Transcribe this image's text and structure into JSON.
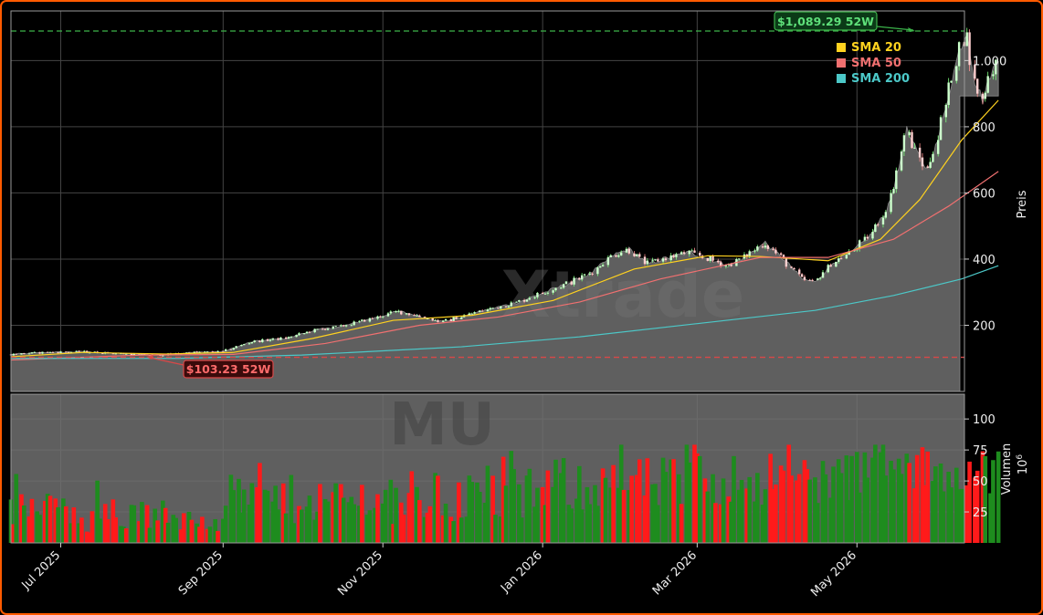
{
  "colors": {
    "background": "#000000",
    "frame": "#ff5a00",
    "area_fill": "#5f5f5f",
    "grid": "#444444",
    "up": "#1e8c1e",
    "down": "#ff1a1a",
    "sma20": "#ffd21f",
    "sma50": "#f07070",
    "sma200": "#4cc8c8",
    "high_line": "#3cb34a",
    "low_line": "#d94848"
  },
  "chart_data": [
    {
      "type": "line",
      "panel": "price",
      "ticker": "MU",
      "watermark": "Xtrade",
      "ylabel": "Preis",
      "ylim": [
        0,
        1150
      ],
      "yticks": [
        200,
        400,
        600,
        800,
        1000
      ],
      "ytick_labels": [
        "200",
        "400",
        "600",
        "800",
        "1.000"
      ],
      "x_tick_labels": [
        "Jul 2025",
        "Sep 2025",
        "Nov 2025",
        "Jan 2026",
        "Mar 2026",
        "May 2026"
      ],
      "x_tick_dates": [
        "2025-07-01",
        "2025-09-01",
        "2025-11-01",
        "2026-01-01",
        "2026-03-01",
        "2026-05-01"
      ],
      "xlim": [
        "2025-06-12",
        "2026-06-10"
      ],
      "grid": true,
      "legend_position": "top-right",
      "annotations": [
        {
          "label": "$1,089.29 52W",
          "value": 1089.29,
          "date": "2026-05-29",
          "kind": "52w-high"
        },
        {
          "label": "$103.23 52W",
          "value": 103.23,
          "date": "2025-08-15",
          "kind": "52w-low"
        }
      ],
      "price_series": {
        "name": "",
        "points": [
          [
            "2025-06-12",
            112
          ],
          [
            "2025-06-25",
            118
          ],
          [
            "2025-07-10",
            120
          ],
          [
            "2025-07-25",
            114
          ],
          [
            "2025-08-08",
            110
          ],
          [
            "2025-08-20",
            118
          ],
          [
            "2025-09-01",
            120
          ],
          [
            "2025-09-12",
            150
          ],
          [
            "2025-09-26",
            162
          ],
          [
            "2025-10-06",
            185
          ],
          [
            "2025-10-16",
            196
          ],
          [
            "2025-10-28",
            220
          ],
          [
            "2025-11-07",
            242
          ],
          [
            "2025-11-14",
            230
          ],
          [
            "2025-11-24",
            210
          ],
          [
            "2025-12-05",
            235
          ],
          [
            "2025-12-15",
            255
          ],
          [
            "2025-12-22",
            268
          ],
          [
            "2026-01-02",
            300
          ],
          [
            "2026-01-12",
            330
          ],
          [
            "2026-01-20",
            360
          ],
          [
            "2026-01-28",
            412
          ],
          [
            "2026-02-03",
            430
          ],
          [
            "2026-02-10",
            385
          ],
          [
            "2026-02-18",
            405
          ],
          [
            "2026-02-26",
            420
          ],
          [
            "2026-03-06",
            400
          ],
          [
            "2026-03-13",
            380
          ],
          [
            "2026-03-20",
            410
          ],
          [
            "2026-03-27",
            450
          ],
          [
            "2026-04-03",
            400
          ],
          [
            "2026-04-10",
            340
          ],
          [
            "2026-04-15",
            330
          ],
          [
            "2026-04-22",
            390
          ],
          [
            "2026-04-29",
            420
          ],
          [
            "2026-05-06",
            470
          ],
          [
            "2026-05-12",
            540
          ],
          [
            "2026-05-16",
            640
          ],
          [
            "2026-05-20",
            790
          ],
          [
            "2026-05-24",
            720
          ],
          [
            "2026-05-28",
            670
          ],
          [
            "2026-06-01",
            760
          ],
          [
            "2026-06-05",
            900
          ],
          [
            "2026-06-09",
            1030
          ],
          [
            "2026-06-12",
            1089
          ],
          [
            "2026-06-15",
            940
          ],
          [
            "2026-06-18",
            880
          ],
          [
            "2026-06-21",
            960
          ],
          [
            "2026-06-24",
            1000
          ]
        ]
      },
      "series": [
        {
          "name": "SMA 20",
          "color": "#ffd21f",
          "points": [
            [
              "2025-06-12",
              105
            ],
            [
              "2025-07-10",
              118
            ],
            [
              "2025-08-10",
              113
            ],
            [
              "2025-09-05",
              118
            ],
            [
              "2025-10-05",
              160
            ],
            [
              "2025-11-05",
              215
            ],
            [
              "2025-12-05",
              230
            ],
            [
              "2026-01-05",
              275
            ],
            [
              "2026-02-05",
              370
            ],
            [
              "2026-03-05",
              410
            ],
            [
              "2026-03-25",
              408
            ],
            [
              "2026-04-20",
              395
            ],
            [
              "2026-05-10",
              460
            ],
            [
              "2026-05-25",
              580
            ],
            [
              "2026-06-10",
              760
            ],
            [
              "2026-06-24",
              880
            ]
          ]
        },
        {
          "name": "SMA 50",
          "color": "#f07070",
          "points": [
            [
              "2025-06-12",
              95
            ],
            [
              "2025-08-01",
              110
            ],
            [
              "2025-09-05",
              112
            ],
            [
              "2025-10-10",
              145
            ],
            [
              "2025-11-15",
              200
            ],
            [
              "2025-12-15",
              225
            ],
            [
              "2026-01-15",
              270
            ],
            [
              "2026-02-15",
              340
            ],
            [
              "2026-03-25",
              405
            ],
            [
              "2026-04-20",
              405
            ],
            [
              "2026-05-15",
              460
            ],
            [
              "2026-06-05",
              560
            ],
            [
              "2026-06-24",
              665
            ]
          ]
        },
        {
          "name": "SMA 200",
          "color": "#4cc8c8",
          "points": [
            [
              "2025-06-12",
              100
            ],
            [
              "2025-08-15",
              100
            ],
            [
              "2025-10-01",
              110
            ],
            [
              "2025-12-01",
              135
            ],
            [
              "2026-01-15",
              165
            ],
            [
              "2026-03-01",
              205
            ],
            [
              "2026-04-15",
              245
            ],
            [
              "2026-05-15",
              290
            ],
            [
              "2026-06-10",
              340
            ],
            [
              "2026-06-24",
              380
            ]
          ]
        }
      ]
    },
    {
      "type": "bar",
      "panel": "volume",
      "ylabel": "Volumen",
      "unit_label": "10^6",
      "ylim": [
        0,
        120
      ],
      "yticks": [
        25,
        50,
        75,
        100
      ],
      "ytick_labels": [
        "25",
        "50",
        "75",
        "100"
      ],
      "grid": true,
      "volume_segments": [
        {
          "from": "2025-06-12",
          "to": "2025-07-10",
          "low": 15,
          "high": 40
        },
        {
          "from": "2025-07-10",
          "to": "2025-09-01",
          "low": 8,
          "high": 35
        },
        {
          "from": "2025-09-01",
          "to": "2025-11-01",
          "low": 15,
          "high": 55
        },
        {
          "from": "2025-11-01",
          "to": "2026-01-01",
          "low": 15,
          "high": 60
        },
        {
          "from": "2026-01-01",
          "to": "2026-03-01",
          "low": 25,
          "high": 70
        },
        {
          "from": "2026-03-01",
          "to": "2026-05-01",
          "low": 30,
          "high": 75
        },
        {
          "from": "2026-05-01",
          "to": "2026-06-24",
          "low": 40,
          "high": 78
        }
      ]
    }
  ]
}
